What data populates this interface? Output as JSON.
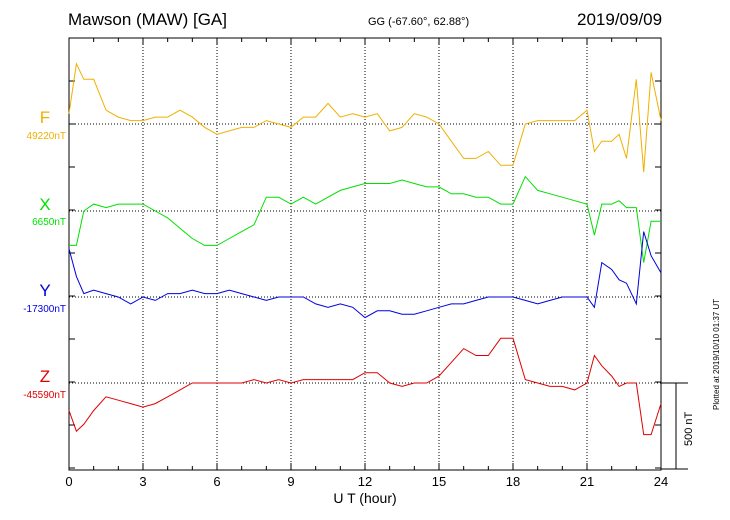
{
  "header": {
    "station": "Mawson (MAW)  [GA]",
    "geomag": "GG (-67.60°,  62.88°)",
    "date": "2019/09/09"
  },
  "footer": {
    "plotted": "Plotted at 2019/10/10 01:37 UT"
  },
  "colors": {
    "F": "#f0b000",
    "X": "#00e000",
    "Y": "#0000e0",
    "Z": "#e00000"
  },
  "chart_data": {
    "type": "line",
    "xlabel": "U T (hour)",
    "xlim": [
      0,
      24
    ],
    "xticks": [
      "0",
      "3",
      "6",
      "9",
      "12",
      "15",
      "18",
      "21",
      "24"
    ],
    "scale_bar": "500 nT",
    "series": [
      {
        "name": "F",
        "baseline": "49220nT",
        "x": [
          0,
          0.3,
          0.6,
          1,
          1.5,
          2,
          2.5,
          3,
          3.5,
          4,
          4.5,
          5,
          5.5,
          6,
          6.5,
          7,
          7.5,
          8,
          8.5,
          9,
          9.5,
          10,
          10.5,
          11,
          11.5,
          12,
          12.5,
          13,
          13.5,
          14,
          14.5,
          15,
          15.5,
          16,
          16.5,
          17,
          17.5,
          18,
          18.5,
          19,
          19.5,
          20,
          20.5,
          21,
          21.3,
          21.6,
          22,
          22.3,
          22.6,
          23,
          23.3,
          23.6,
          24
        ],
        "y": [
          60,
          350,
          260,
          260,
          80,
          40,
          20,
          20,
          40,
          40,
          80,
          40,
          -20,
          -60,
          -40,
          -20,
          -20,
          20,
          0,
          -20,
          40,
          40,
          120,
          40,
          60,
          40,
          60,
          -40,
          -20,
          60,
          40,
          0,
          -100,
          -200,
          -200,
          -160,
          -240,
          -240,
          0,
          20,
          20,
          20,
          20,
          80,
          -160,
          -100,
          -100,
          -60,
          -200,
          260,
          -280,
          300,
          20
        ]
      },
      {
        "name": "X",
        "baseline": "6650nT",
        "x": [
          0,
          0.3,
          0.6,
          1,
          1.5,
          2,
          2.5,
          3,
          3.5,
          4,
          4.5,
          5,
          5.5,
          6,
          6.5,
          7,
          7.5,
          8,
          8.5,
          9,
          9.5,
          10,
          10.5,
          11,
          11.5,
          12,
          12.5,
          13,
          13.5,
          14,
          14.5,
          15,
          15.5,
          16,
          16.5,
          17,
          17.5,
          18,
          18.5,
          19,
          19.5,
          20,
          20.5,
          21,
          21.3,
          21.6,
          22,
          22.3,
          22.6,
          23,
          23.3,
          23.6,
          24
        ],
        "y": [
          -200,
          -200,
          0,
          40,
          20,
          40,
          40,
          40,
          0,
          -40,
          -100,
          -160,
          -200,
          -200,
          -160,
          -120,
          -80,
          80,
          80,
          40,
          80,
          40,
          80,
          120,
          140,
          160,
          160,
          160,
          180,
          160,
          140,
          140,
          100,
          100,
          80,
          80,
          40,
          40,
          200,
          120,
          100,
          80,
          60,
          40,
          -140,
          40,
          40,
          60,
          20,
          20,
          -300,
          -60,
          -60
        ]
      },
      {
        "name": "Y",
        "baseline": "-17300nT",
        "x": [
          0,
          0.3,
          0.6,
          1,
          1.5,
          2,
          2.5,
          3,
          3.5,
          4,
          4.5,
          5,
          5.5,
          6,
          6.5,
          7,
          7.5,
          8,
          8.5,
          9,
          9.5,
          10,
          10.5,
          11,
          11.5,
          12,
          12.5,
          13,
          13.5,
          14,
          14.5,
          15,
          15.5,
          16,
          16.5,
          17,
          17.5,
          18,
          18.5,
          19,
          19.5,
          20,
          20.5,
          21,
          21.3,
          21.6,
          22,
          22.3,
          22.6,
          23,
          23.3,
          23.6,
          24
        ],
        "y": [
          280,
          120,
          20,
          40,
          20,
          0,
          -40,
          0,
          -20,
          20,
          20,
          40,
          20,
          20,
          40,
          20,
          0,
          -20,
          0,
          0,
          0,
          -40,
          -60,
          -40,
          -60,
          -120,
          -80,
          -80,
          -100,
          -100,
          -80,
          -60,
          -40,
          -40,
          -20,
          0,
          0,
          0,
          -20,
          -40,
          -20,
          0,
          0,
          0,
          -60,
          200,
          160,
          100,
          80,
          -40,
          380,
          240,
          140
        ]
      },
      {
        "name": "Z",
        "baseline": "-45590nT",
        "x": [
          0,
          0.3,
          0.6,
          1,
          1.5,
          2,
          2.5,
          3,
          3.5,
          4,
          4.5,
          5,
          5.5,
          6,
          6.5,
          7,
          7.5,
          8,
          8.5,
          9,
          9.5,
          10,
          10.5,
          11,
          11.5,
          12,
          12.5,
          13,
          13.5,
          14,
          14.5,
          15,
          15.5,
          16,
          16.5,
          17,
          17.5,
          18,
          18.5,
          19,
          19.5,
          20,
          20.5,
          21,
          21.3,
          21.6,
          22,
          22.3,
          22.6,
          23,
          23.3,
          23.6,
          24
        ],
        "y": [
          -160,
          -280,
          -240,
          -160,
          -80,
          -100,
          -120,
          -140,
          -120,
          -80,
          -40,
          0,
          0,
          0,
          0,
          0,
          20,
          0,
          20,
          0,
          20,
          20,
          20,
          20,
          20,
          60,
          60,
          0,
          -20,
          0,
          0,
          40,
          120,
          200,
          160,
          160,
          260,
          260,
          20,
          0,
          -20,
          -20,
          -40,
          0,
          160,
          100,
          40,
          -20,
          0,
          0,
          -300,
          -300,
          -120
        ]
      }
    ]
  }
}
